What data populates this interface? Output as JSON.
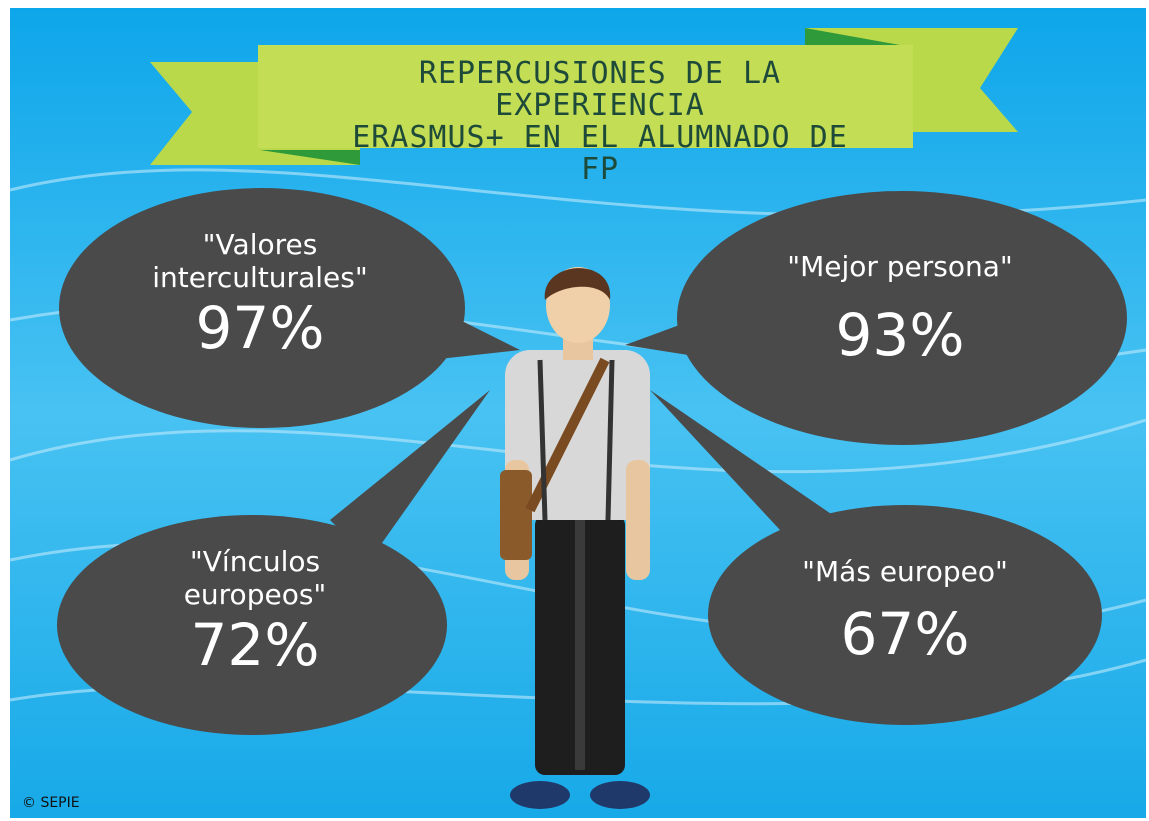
{
  "header": {
    "title_lines": [
      "REPERCUSIONES DE LA EXPERIENCIA",
      "ERASMUS+ EN EL ALUMNADO DE FP"
    ]
  },
  "bubbles": [
    {
      "label": "\"Valores interculturales\"",
      "percent": "97%"
    },
    {
      "label": "\"Mejor persona\"",
      "percent": "93%"
    },
    {
      "label": "\"Vínculos europeos\"",
      "percent": "72%"
    },
    {
      "label": "\"Más europeo\"",
      "percent": "67%"
    }
  ],
  "footer": {
    "credit": "© SEPIE"
  }
}
